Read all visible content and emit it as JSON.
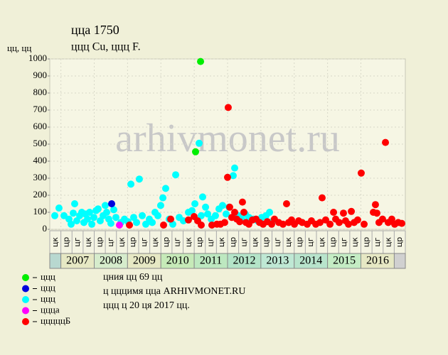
{
  "chart_data": {
    "type": "scatter",
    "title": "ццa 1750",
    "subtitle": "ццц Cu, ццц F.",
    "y_label": "цц, цц",
    "watermark": "arhivmonet.ru",
    "notes": [
      "цния цц 69 цц",
      "ц цццимя цца ARHIVMONET.RU",
      "ццц ц 20 ця 2017 цц."
    ],
    "xlim": [
      0,
      32
    ],
    "ylim": [
      0,
      1000
    ],
    "yticks": [
      0,
      100,
      200,
      300,
      400,
      500,
      600,
      700,
      800,
      900,
      1000
    ],
    "grid": true,
    "xticks": [
      {
        "value": 0.5,
        "label": "цк"
      },
      {
        "value": 1.5,
        "label": "цр"
      },
      {
        "value": 2.5,
        "label": "цг"
      },
      {
        "value": 3.5,
        "label": "цк"
      },
      {
        "value": 4.5,
        "label": "цр"
      },
      {
        "value": 5.5,
        "label": "цг"
      },
      {
        "value": 6.5,
        "label": "цк"
      },
      {
        "value": 7.5,
        "label": "цр"
      },
      {
        "value": 8.5,
        "label": "цг"
      },
      {
        "value": 9.5,
        "label": "цк"
      },
      {
        "value": 10.5,
        "label": "цр"
      },
      {
        "value": 11.5,
        "label": "цг"
      },
      {
        "value": 12.5,
        "label": "цк"
      },
      {
        "value": 13.5,
        "label": "цр"
      },
      {
        "value": 14.5,
        "label": "цг"
      },
      {
        "value": 15.5,
        "label": "цк"
      },
      {
        "value": 16.5,
        "label": "цр"
      },
      {
        "value": 17.5,
        "label": "цг"
      },
      {
        "value": 18.5,
        "label": "цк"
      },
      {
        "value": 19.5,
        "label": "цр"
      },
      {
        "value": 20.5,
        "label": "цг"
      },
      {
        "value": 21.5,
        "label": "цк"
      },
      {
        "value": 22.5,
        "label": "цр"
      },
      {
        "value": 23.5,
        "label": "цг"
      },
      {
        "value": 24.5,
        "label": "цк"
      },
      {
        "value": 25.5,
        "label": "цр"
      },
      {
        "value": 26.5,
        "label": "цг"
      },
      {
        "value": 27.5,
        "label": "цк"
      },
      {
        "value": 28.5,
        "label": "цр"
      },
      {
        "value": 29.5,
        "label": "цг"
      },
      {
        "value": 30.5,
        "label": "цк"
      },
      {
        "value": 31.5,
        "label": "цр"
      }
    ],
    "year_bands": [
      {
        "label": "2007",
        "from": 1,
        "to": 4,
        "color": "#e6e8c4"
      },
      {
        "label": "2008",
        "from": 4,
        "to": 7,
        "color": "#d6eccc"
      },
      {
        "label": "2009",
        "from": 7,
        "to": 10,
        "color": "#e6e8c4"
      },
      {
        "label": "2010",
        "from": 10,
        "to": 13,
        "color": "#c6eab8"
      },
      {
        "label": "2011",
        "from": 13,
        "to": 16,
        "color": "#bde8c0"
      },
      {
        "label": "2012",
        "from": 16,
        "to": 19,
        "color": "#b4e4c8"
      },
      {
        "label": "2013",
        "from": 19,
        "to": 22,
        "color": "#bfe8d4"
      },
      {
        "label": "2014",
        "from": 22,
        "to": 25,
        "color": "#b8e4cc"
      },
      {
        "label": "2015",
        "from": 25,
        "to": 28,
        "color": "#c4ecc4"
      },
      {
        "label": "2016",
        "from": 28,
        "to": 31,
        "color": "#e6e8c4"
      }
    ],
    "series": [
      {
        "name": "ццц",
        "color": "#00ee00",
        "x": [
          13.57,
          13.12
        ],
        "values": [
          985,
          455
        ]
      },
      {
        "name": "ццц",
        "color": "#0000dd",
        "x": [
          5.57
        ],
        "values": [
          150
        ]
      },
      {
        "name": "ццц",
        "color": "#00ffff",
        "x": [
          0.45,
          0.83,
          1.28,
          1.73,
          1.92,
          2.11,
          2.24,
          2.43,
          2.69,
          2.88,
          3.07,
          3.2,
          3.39,
          3.58,
          3.78,
          3.97,
          4.16,
          4.35,
          4.54,
          4.8,
          4.99,
          5.12,
          5.31,
          5.5,
          5.76,
          5.95,
          6.4,
          6.72,
          7.04,
          7.3,
          7.55,
          7.81,
          8.06,
          8.32,
          8.64,
          8.96,
          9.22,
          9.47,
          9.73,
          9.98,
          10.18,
          10.43,
          10.75,
          11.07,
          11.33,
          11.65,
          12.03,
          12.48,
          12.8,
          13.06,
          13.44,
          13.63,
          13.76,
          14.02,
          14.21,
          14.53,
          14.91,
          15.23,
          15.55,
          15.87,
          16.13,
          16.51,
          16.64,
          16.96,
          17.28,
          17.6,
          17.92,
          18.3,
          18.69,
          19.07,
          19.46,
          19.78,
          20.1
        ],
        "values": [
          80,
          125,
          80,
          60,
          30,
          95,
          150,
          50,
          80,
          100,
          40,
          90,
          60,
          100,
          30,
          70,
          110,
          120,
          50,
          80,
          140,
          100,
          60,
          35,
          115,
          70,
          40,
          60,
          45,
          265,
          70,
          40,
          295,
          80,
          30,
          60,
          40,
          100,
          80,
          140,
          185,
          240,
          60,
          30,
          320,
          70,
          50,
          100,
          110,
          150,
          505,
          80,
          190,
          130,
          90,
          60,
          80,
          120,
          140,
          90,
          130,
          315,
          360,
          80,
          60,
          90,
          70,
          60,
          50,
          70,
          80,
          100,
          50
        ]
      },
      {
        "name": "ццца",
        "color": "#ff00ff",
        "x": [
          6.27
        ],
        "values": [
          25
        ]
      },
      {
        "name": "цццццБ",
        "color": "#ff0000",
        "x": [
          7.17,
          10.24,
          10.88,
          12.48,
          12.99,
          13.31,
          13.63,
          14.59,
          15.04,
          15.36,
          15.74,
          16.0,
          16.06,
          16.19,
          16.38,
          16.64,
          16.83,
          17.09,
          17.34,
          17.47,
          17.66,
          17.92,
          18.24,
          18.56,
          18.88,
          19.2,
          19.58,
          19.97,
          20.22,
          20.61,
          20.99,
          21.31,
          21.5,
          21.76,
          22.02,
          22.4,
          22.72,
          23.17,
          23.55,
          23.94,
          24.32,
          24.51,
          24.83,
          25.22,
          25.54,
          25.73,
          26.05,
          26.43,
          26.62,
          26.88,
          27.14,
          27.39,
          27.71,
          28.03,
          28.29,
          29.12,
          29.31,
          29.44,
          29.63,
          29.95,
          30.21,
          30.46,
          30.78,
          31.04,
          31.36,
          31.68
        ],
        "values": [
          25,
          25,
          60,
          55,
          75,
          50,
          25,
          25,
          30,
          30,
          40,
          305,
          715,
          130,
          70,
          100,
          60,
          45,
          160,
          100,
          40,
          30,
          55,
          60,
          40,
          30,
          45,
          30,
          60,
          40,
          30,
          150,
          40,
          55,
          30,
          50,
          40,
          30,
          50,
          30,
          40,
          185,
          55,
          30,
          100,
          60,
          40,
          95,
          50,
          30,
          105,
          40,
          55,
          330,
          30,
          100,
          145,
          95,
          40,
          60,
          510,
          40,
          60,
          30,
          40,
          35
        ]
      }
    ]
  }
}
